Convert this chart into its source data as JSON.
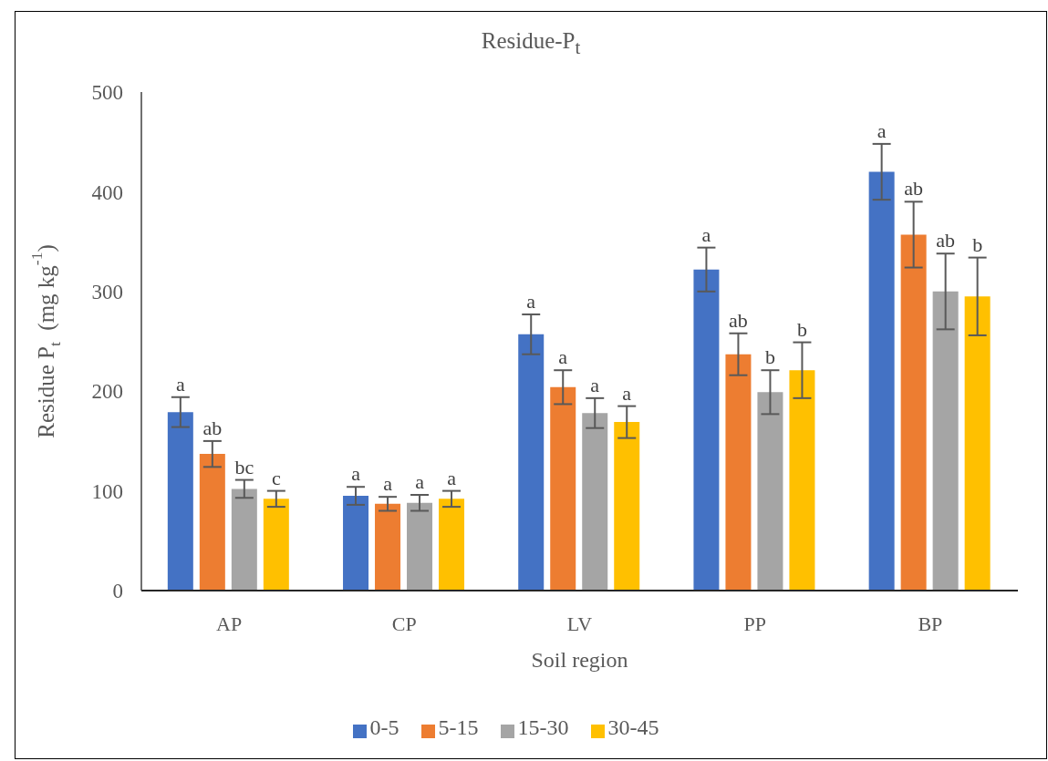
{
  "chart_data": {
    "type": "bar",
    "title": "Residue-P$_{t}$",
    "xlabel": "Soil region",
    "ylabel": "Residue P$_{t}$  (mg kg$^{-1}$)",
    "categories": [
      "AP",
      "CP",
      "LV",
      "PP",
      "BP"
    ],
    "series": [
      {
        "name": "0-5",
        "color": "#4472c4",
        "values": [
          179,
          95,
          257,
          322,
          420
        ],
        "errors": [
          15,
          9,
          20,
          22,
          28
        ],
        "value_labels": [
          "a",
          "a",
          "a",
          "a",
          "a"
        ]
      },
      {
        "name": "5-15",
        "color": "#ed7d31",
        "values": [
          137,
          87,
          204,
          237,
          357
        ],
        "errors": [
          13,
          7,
          17,
          21,
          33
        ],
        "value_labels": [
          "ab",
          "a",
          "a",
          "ab",
          "ab"
        ]
      },
      {
        "name": "15-30",
        "color": "#a5a5a5",
        "values": [
          102,
          88,
          178,
          199,
          300
        ],
        "errors": [
          9,
          8,
          15,
          22,
          38
        ],
        "value_labels": [
          "bc",
          "a",
          "a",
          "b",
          "ab"
        ]
      },
      {
        "name": "30-45",
        "color": "#ffc000",
        "values": [
          92,
          92,
          169,
          221,
          295
        ],
        "errors": [
          8,
          8,
          16,
          28,
          39
        ],
        "value_labels": [
          "c",
          "a",
          "a",
          "b",
          "b"
        ]
      }
    ],
    "ylim": [
      0,
      500
    ],
    "yticks": [
      0,
      100,
      200,
      300,
      400,
      500
    ],
    "grid": false,
    "legend": "bottom"
  }
}
